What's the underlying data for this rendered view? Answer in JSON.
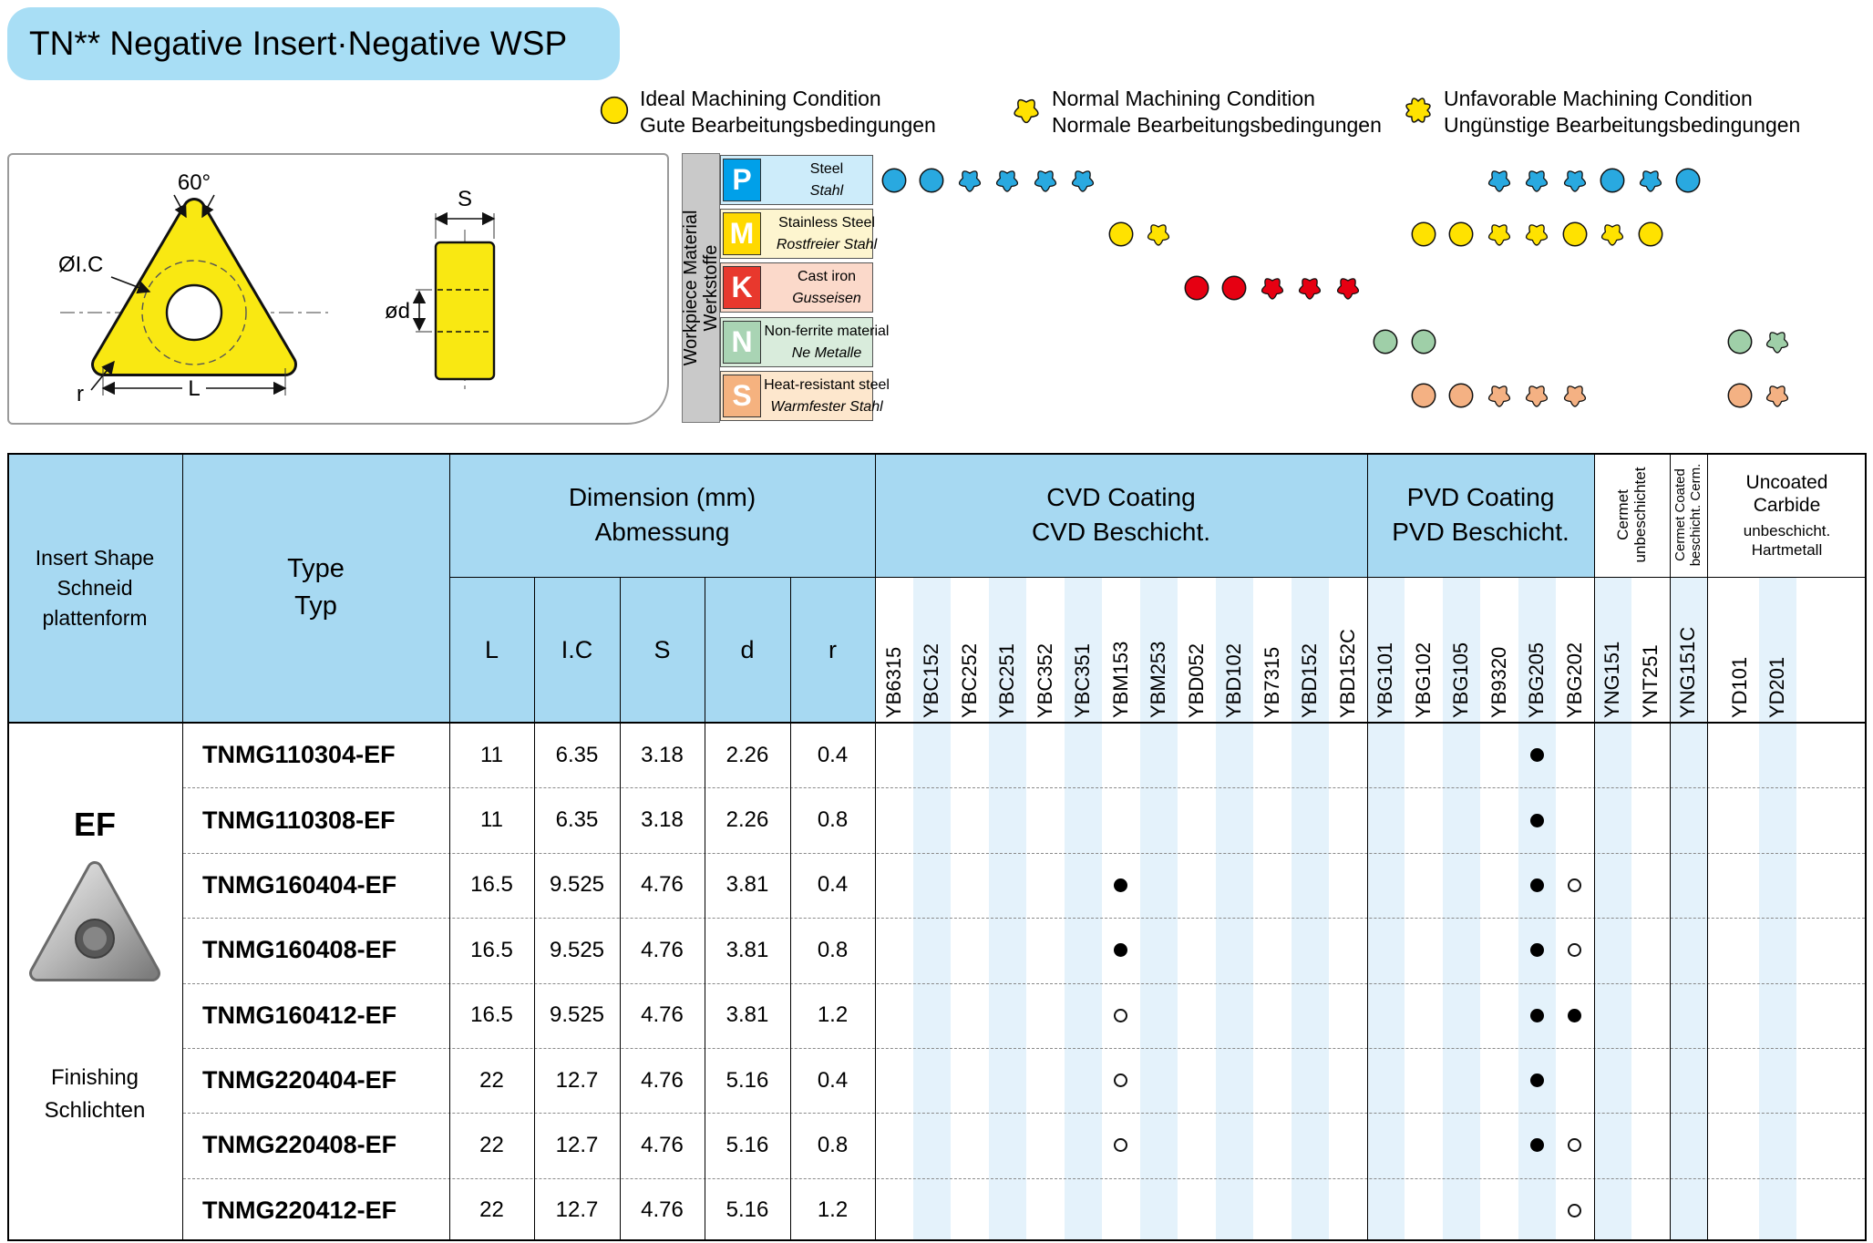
{
  "title": "TN** Negative Insert·Negative WSP",
  "legend_color": "#ffe200",
  "legend": [
    {
      "type": "ideal",
      "en": "Ideal Machining Condition",
      "de": "Gute Bearbeitungsbedingungen"
    },
    {
      "type": "normal",
      "en": "Normal Machining Condition",
      "de": "Normale Bearbeitungsbedingungen"
    },
    {
      "type": "unfavorable",
      "en": "Unfavorable Machining Condition",
      "de": "Ungünstige Bearbeitungsbedingungen"
    }
  ],
  "drawing": {
    "angle": "60°",
    "ic": "ØI.C",
    "s": "S",
    "d": "ød",
    "l": "L",
    "r": "r"
  },
  "workpiece": {
    "sidebar_en": "Workpiece Material",
    "sidebar_de": "Werkstoffe",
    "rows": [
      {
        "code": "P",
        "en": "Steel",
        "de": "Stahl",
        "box": "#00a0e9",
        "cell": "#cdecfa",
        "icon": "#29a9e0",
        "marks": [
          [
            "YB6315",
            "ideal"
          ],
          [
            "YBC152",
            "ideal"
          ],
          [
            "YBC252",
            "normal"
          ],
          [
            "YBC251",
            "normal"
          ],
          [
            "YBC352",
            "normal"
          ],
          [
            "YBC351",
            "normal"
          ],
          [
            "YB9320",
            "normal"
          ],
          [
            "YBG205",
            "normal"
          ],
          [
            "YBG202",
            "normal"
          ],
          [
            "YNG151",
            "ideal"
          ],
          [
            "YNT251",
            "normal"
          ],
          [
            "YNG151C",
            "ideal"
          ]
        ]
      },
      {
        "code": "M",
        "en": "Stainless Steel",
        "de": "Rostfreier Stahl",
        "box": "#ffd900",
        "cell": "#fdf5cf",
        "icon": "#ffe200",
        "marks": [
          [
            "YBM153",
            "ideal"
          ],
          [
            "YBM253",
            "normal"
          ],
          [
            "YBG102",
            "ideal"
          ],
          [
            "YBG105",
            "ideal"
          ],
          [
            "YB9320",
            "normal"
          ],
          [
            "YBG205",
            "normal"
          ],
          [
            "YBG202",
            "ideal"
          ],
          [
            "YNG151",
            "normal"
          ],
          [
            "YNT251",
            "ideal"
          ]
        ]
      },
      {
        "code": "K",
        "en": "Cast iron",
        "de": "Gusseisen",
        "box": "#e8382d",
        "cell": "#fbd9ca",
        "icon": "#e60012",
        "marks": [
          [
            "YBD052",
            "ideal"
          ],
          [
            "YBD102",
            "ideal"
          ],
          [
            "YB7315",
            "normal"
          ],
          [
            "YBD152",
            "normal"
          ],
          [
            "YBD152C",
            "normal"
          ]
        ]
      },
      {
        "code": "N",
        "en": "Non-ferrite material",
        "de": "Ne Metalle",
        "box": "#a9d4b4",
        "cell": "#d9ecdc",
        "icon": "#9fcfa8",
        "marks": [
          [
            "YBG101",
            "ideal"
          ],
          [
            "YBG102",
            "ideal"
          ],
          [
            "YD101",
            "ideal"
          ],
          [
            "YD201",
            "normal"
          ]
        ]
      },
      {
        "code": "S",
        "en": "Heat-resistant steel",
        "de": "Warmfester Stahl",
        "box": "#f5b27f",
        "cell": "#fde7cd",
        "icon": "#f4b183",
        "marks": [
          [
            "YBG102",
            "ideal"
          ],
          [
            "YBG105",
            "ideal"
          ],
          [
            "YB9320",
            "normal"
          ],
          [
            "YBG205",
            "normal"
          ],
          [
            "YBG202",
            "normal"
          ],
          [
            "YD101",
            "ideal"
          ],
          [
            "YD201",
            "normal"
          ]
        ]
      }
    ]
  },
  "grades": {
    "cvd": [
      "YB6315",
      "YBC152",
      "YBC252",
      "YBC251",
      "YBC352",
      "YBC351",
      "YBM153",
      "YBM253",
      "YBD052",
      "YBD102",
      "YB7315",
      "YBD152",
      "YBD152C"
    ],
    "pvd": [
      "YBG101",
      "YBG102",
      "YBG105",
      "YB9320",
      "YBG205",
      "YBG202"
    ],
    "cermet_uncoated": [
      "YNG151",
      "YNT251"
    ],
    "cermet_coated": [
      "YNG151C"
    ],
    "uncoated": [
      "YD101",
      "YD201"
    ]
  },
  "table": {
    "header": {
      "insert_shape": [
        "Insert Shape",
        "Schneid",
        "plattenform"
      ],
      "type": [
        "Type",
        "Typ"
      ],
      "dimension": [
        "Dimension (mm)",
        "Abmessung"
      ],
      "cvd": [
        "CVD Coating",
        "CVD Beschicht."
      ],
      "pvd": [
        "PVD Coating",
        "PVD Beschicht."
      ],
      "cermet_uncoated": [
        "Cermet",
        "unbeschichtet"
      ],
      "cermet_coated": [
        "Cermet Coated",
        "beschicht. Cerm."
      ],
      "uncoated": [
        "Uncoated Carbide",
        "unbeschicht.",
        "Hartmetall"
      ],
      "dims": [
        "L",
        "I.C",
        "S",
        "d",
        "r"
      ]
    },
    "left": {
      "shape": "EF",
      "finish_en": "Finishing",
      "finish_de": "Schlichten"
    },
    "rows": [
      {
        "type": "TNMG110304-EF",
        "dims": [
          "11",
          "6.35",
          "3.18",
          "2.26",
          "0.4"
        ],
        "marks": [
          [
            "YBG205",
            "filled"
          ]
        ]
      },
      {
        "type": "TNMG110308-EF",
        "dims": [
          "11",
          "6.35",
          "3.18",
          "2.26",
          "0.8"
        ],
        "marks": [
          [
            "YBG205",
            "filled"
          ]
        ]
      },
      {
        "type": "TNMG160404-EF",
        "dims": [
          "16.5",
          "9.525",
          "4.76",
          "3.81",
          "0.4"
        ],
        "marks": [
          [
            "YBM153",
            "filled"
          ],
          [
            "YBG205",
            "filled"
          ],
          [
            "YBG202",
            "open"
          ]
        ]
      },
      {
        "type": "TNMG160408-EF",
        "dims": [
          "16.5",
          "9.525",
          "4.76",
          "3.81",
          "0.8"
        ],
        "marks": [
          [
            "YBM153",
            "filled"
          ],
          [
            "YBG205",
            "filled"
          ],
          [
            "YBG202",
            "open"
          ]
        ]
      },
      {
        "type": "TNMG160412-EF",
        "dims": [
          "16.5",
          "9.525",
          "4.76",
          "3.81",
          "1.2"
        ],
        "marks": [
          [
            "YBM153",
            "open"
          ],
          [
            "YBG205",
            "filled"
          ],
          [
            "YBG202",
            "filled"
          ]
        ]
      },
      {
        "type": "TNMG220404-EF",
        "dims": [
          "22",
          "12.7",
          "4.76",
          "5.16",
          "0.4"
        ],
        "marks": [
          [
            "YBM153",
            "open"
          ],
          [
            "YBG205",
            "filled"
          ]
        ]
      },
      {
        "type": "TNMG220408-EF",
        "dims": [
          "22",
          "12.7",
          "4.76",
          "5.16",
          "0.8"
        ],
        "marks": [
          [
            "YBM153",
            "open"
          ],
          [
            "YBG205",
            "filled"
          ],
          [
            "YBG202",
            "open"
          ]
        ]
      },
      {
        "type": "TNMG220412-EF",
        "dims": [
          "22",
          "12.7",
          "4.76",
          "5.16",
          "1.2"
        ],
        "marks": [
          [
            "YBG202",
            "open"
          ]
        ]
      }
    ]
  },
  "colors": {
    "header_blue": "#a7d9f2",
    "stripe": "#e4f2fb",
    "badge": "#a8def5",
    "sidebar_gray": "#c9c9c9"
  }
}
